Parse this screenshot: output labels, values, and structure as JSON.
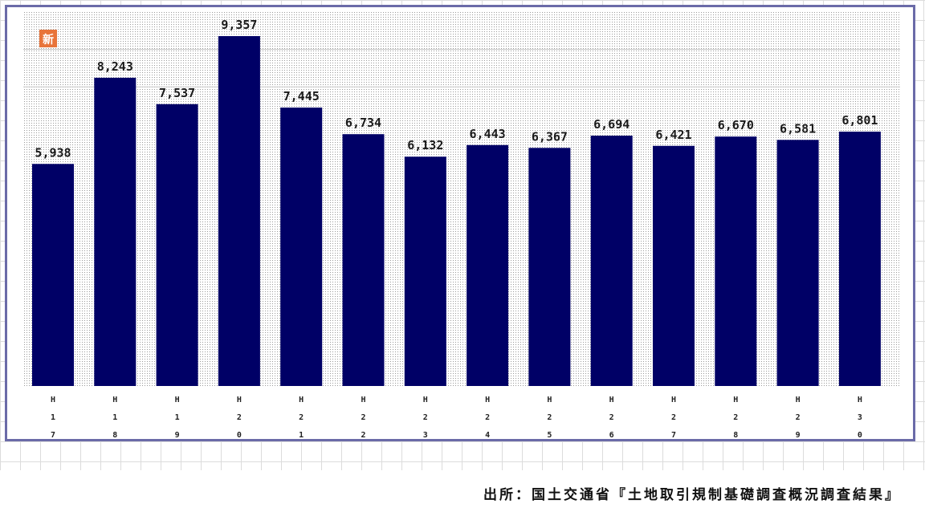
{
  "chart_data": {
    "type": "bar",
    "categories": [
      "H17",
      "H18",
      "H19",
      "H20",
      "H21",
      "H22",
      "H23",
      "H24",
      "H25",
      "H26",
      "H27",
      "H28",
      "H29",
      "H30"
    ],
    "values": [
      5938,
      8243,
      7537,
      9357,
      7445,
      6734,
      6132,
      6443,
      6367,
      6694,
      6421,
      6670,
      6581,
      6801
    ],
    "value_labels": [
      "5,938",
      "8,243",
      "7,537",
      "9,357",
      "7,445",
      "6,734",
      "6,132",
      "6,443",
      "6,367",
      "6,694",
      "6,421",
      "6,670",
      "6,581",
      "6,801"
    ],
    "title": "",
    "xlabel": "",
    "ylabel": "",
    "ylim": [
      0,
      10000
    ],
    "grid": true,
    "legend": "none",
    "colors": {
      "bar": "#000066",
      "frame": "#6b6ba8",
      "plot_dots": "#9a9a9a",
      "badge": "#e8743a"
    }
  },
  "badge": {
    "text": "新",
    "color": "#e8743a"
  },
  "source": {
    "text": "出所：国土交通省『土地取引規制基礎調査概況調査結果』"
  }
}
